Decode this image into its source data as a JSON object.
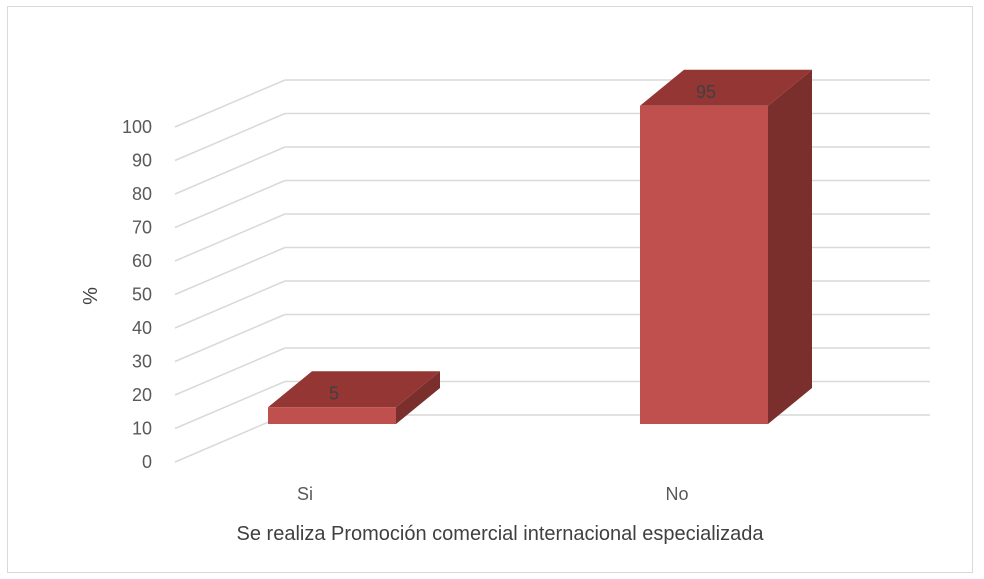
{
  "chart_data": {
    "type": "bar",
    "categories": [
      "Si",
      "No"
    ],
    "values": [
      5,
      95
    ],
    "data_labels": [
      "5",
      "95"
    ],
    "title": "",
    "xlabel": "Se realiza Promoción comercial internacional especializada",
    "ylabel": "%",
    "ylim": [
      0,
      100
    ],
    "y_ticks": [
      "0",
      "10",
      "20",
      "30",
      "40",
      "50",
      "60",
      "70",
      "80",
      "90",
      "100"
    ],
    "grid": true,
    "projection": "3d",
    "colors": {
      "bar_front": "#c0504d",
      "bar_top": "#943634",
      "bar_side": "#7a2f2d",
      "grid": "#d9d9d9"
    }
  }
}
